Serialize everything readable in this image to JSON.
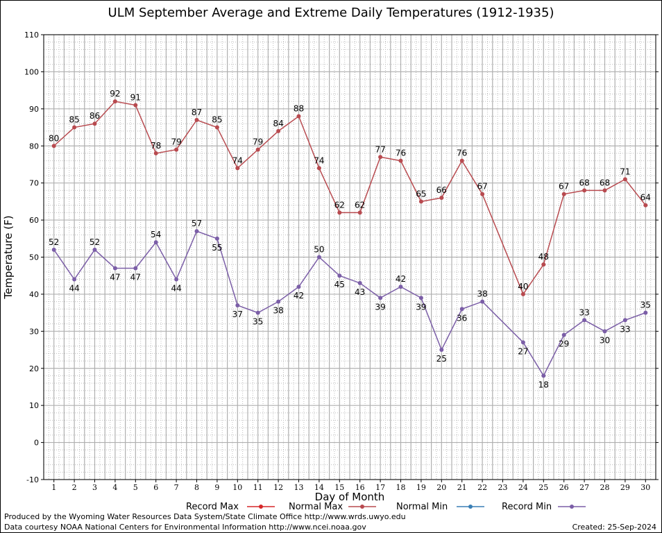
{
  "chart_data": {
    "type": "line",
    "title": "ULM September Average and Extreme Daily Temperatures (1912-1935)",
    "xlabel": "Day of Month",
    "ylabel": "Temperature (F)",
    "ylim": [
      -10,
      110
    ],
    "xlim": [
      1,
      30
    ],
    "yticks": [
      -10,
      0,
      10,
      20,
      30,
      40,
      50,
      60,
      70,
      80,
      90,
      100,
      110
    ],
    "xticks": [
      1,
      2,
      3,
      4,
      5,
      6,
      7,
      8,
      9,
      10,
      11,
      12,
      13,
      14,
      15,
      16,
      17,
      18,
      19,
      20,
      21,
      22,
      23,
      24,
      25,
      26,
      27,
      28,
      29,
      30
    ],
    "grid": true,
    "legend_position": "bottom",
    "series": [
      {
        "name": "Record Max",
        "color": "#b84a4f",
        "x": [
          1,
          2,
          3,
          4,
          5,
          6,
          7,
          8,
          9,
          10,
          11,
          12,
          13,
          14,
          15,
          16,
          17,
          18,
          19,
          20,
          21,
          22,
          24,
          25,
          26,
          27,
          28,
          29,
          30
        ],
        "values": [
          80,
          85,
          86,
          92,
          91,
          78,
          79,
          87,
          85,
          74,
          79,
          84,
          88,
          74,
          62,
          62,
          77,
          76,
          65,
          66,
          76,
          67,
          40,
          48,
          67,
          68,
          68,
          71,
          64
        ]
      },
      {
        "name": "Record Min",
        "color": "#7b5ea7",
        "x": [
          1,
          2,
          3,
          4,
          5,
          6,
          7,
          8,
          9,
          10,
          11,
          12,
          13,
          14,
          15,
          16,
          17,
          18,
          19,
          20,
          21,
          22,
          24,
          25,
          26,
          27,
          28,
          29,
          30
        ],
        "values": [
          52,
          44,
          52,
          47,
          47,
          54,
          44,
          57,
          55,
          37,
          35,
          38,
          42,
          50,
          45,
          43,
          39,
          42,
          39,
          25,
          36,
          38,
          27,
          18,
          29,
          33,
          30,
          33,
          35
        ]
      }
    ],
    "legend": [
      {
        "name": "Record Max",
        "color": "#d62728"
      },
      {
        "name": "Normal Max",
        "color": "#b84a4f"
      },
      {
        "name": "Normal Min",
        "color": "#3a7fb5"
      },
      {
        "name": "Record Min",
        "color": "#7b5ea7"
      }
    ]
  },
  "footer": {
    "left_line1": "Produced by the Wyoming Water Resources Data System/State Climate Office http://www.wrds.uwyo.edu",
    "left_line2": "Data courtesy NOAA National Centers for Environmental Information http://www.ncei.noaa.gov",
    "created": "Created:  25-Sep-2024"
  }
}
